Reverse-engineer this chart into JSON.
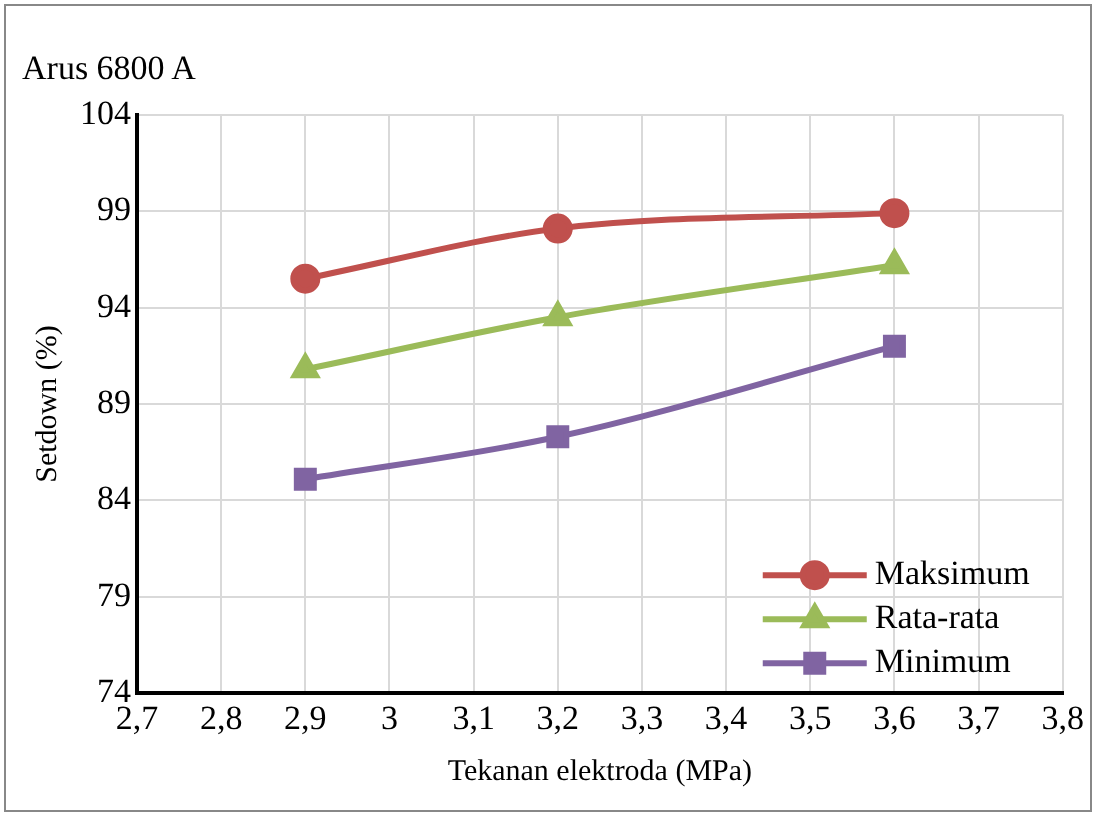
{
  "chart_data": {
    "type": "line",
    "title": "Arus 6800 A",
    "xlabel": "Tekanan elektroda (MPa)",
    "ylabel": "Setdown (%)",
    "x": [
      2.9,
      3.2,
      3.6
    ],
    "series": [
      {
        "name": "Maksimum",
        "color": "#c0504d",
        "marker": "circle",
        "values": [
          95.5,
          98.1,
          98.9
        ]
      },
      {
        "name": "Rata-rata",
        "color": "#9bbb59",
        "marker": "triangle",
        "values": [
          90.8,
          93.5,
          96.2
        ]
      },
      {
        "name": "Minimum",
        "color": "#8064a2",
        "marker": "square",
        "values": [
          85.1,
          87.3,
          92.0
        ]
      }
    ],
    "xlim": [
      2.7,
      3.8
    ],
    "xticks": [
      {
        "value": 2.7,
        "label": "2,7"
      },
      {
        "value": 2.8,
        "label": "2,8"
      },
      {
        "value": 2.9,
        "label": "2,9"
      },
      {
        "value": 3,
        "label": "3"
      },
      {
        "value": 3.1,
        "label": "3,1"
      },
      {
        "value": 3.2,
        "label": "3,2"
      },
      {
        "value": 3.3,
        "label": "3,3"
      },
      {
        "value": 3.4,
        "label": "3,4"
      },
      {
        "value": 3.5,
        "label": "3,5"
      },
      {
        "value": 3.6,
        "label": "3,6"
      },
      {
        "value": 3.7,
        "label": "3,7"
      },
      {
        "value": 3.8,
        "label": "3,8"
      }
    ],
    "ylim": [
      74,
      104
    ],
    "yticks": [
      74,
      79,
      84,
      89,
      94,
      99,
      104
    ],
    "grid": true,
    "legend": "bottom right",
    "line_style": "solid"
  }
}
